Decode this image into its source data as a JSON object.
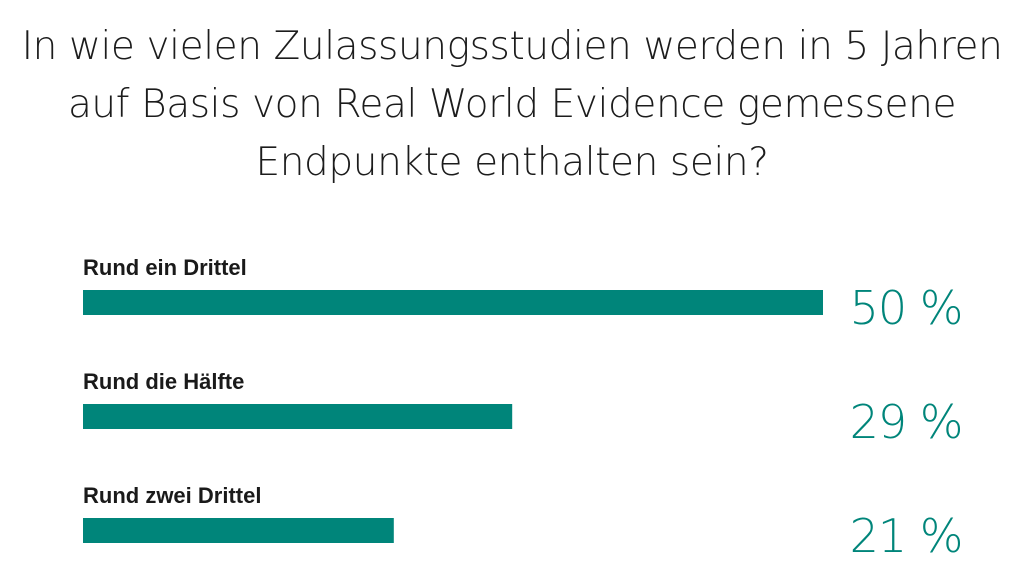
{
  "chart_data": {
    "type": "bar",
    "orientation": "horizontal",
    "title_lines": [
      "In wie vielen Zulassungsstudien werden in 5 Jahren",
      "auf Basis von Real World Evidence gemessene",
      "Endpunkte enthalten sein?"
    ],
    "categories": [
      "Rund ein Drittel",
      "Rund die Hälfte",
      "Rund zwei Drittel"
    ],
    "values": [
      50,
      29,
      21
    ],
    "value_labels": [
      "50 %",
      "29 %",
      "21 %"
    ],
    "xlim": [
      0,
      50
    ],
    "grid": false,
    "legend": "none",
    "bar_color": "#00857a",
    "value_color": "#00857a"
  }
}
